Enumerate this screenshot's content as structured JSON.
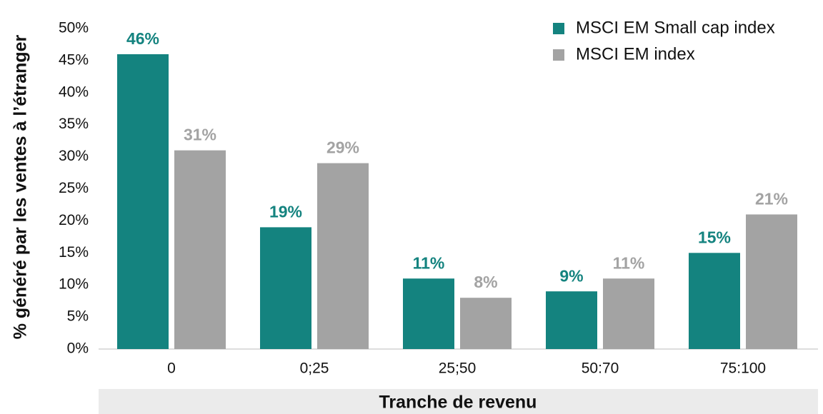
{
  "chart_data": {
    "type": "bar",
    "x_label": "Tranche de revenu",
    "y_label": "% généré par les ventes à l’étranger",
    "categories": [
      "0",
      "0;25",
      "25;50",
      "50:70",
      "75:100"
    ],
    "series": [
      {
        "name": "MSCI EM Small cap index",
        "color": "#14837f",
        "values": [
          46,
          19,
          11,
          9,
          15
        ],
        "value_labels": [
          "46%",
          "19%",
          "11%",
          "9%",
          "15%"
        ]
      },
      {
        "name": "MSCI EM index",
        "color": "#a3a3a3",
        "values": [
          31,
          29,
          8,
          11,
          21
        ],
        "value_labels": [
          "31%",
          "29%",
          "8%",
          "11%",
          "21%"
        ]
      }
    ],
    "ylim": [
      0,
      50
    ],
    "yticks": [
      {
        "value": 0,
        "label": "0%"
      },
      {
        "value": 5,
        "label": "5%"
      },
      {
        "value": 10,
        "label": "10%"
      },
      {
        "value": 15,
        "label": "15%"
      },
      {
        "value": 20,
        "label": "20%"
      },
      {
        "value": 25,
        "label": "25%"
      },
      {
        "value": 30,
        "label": "30%"
      },
      {
        "value": 35,
        "label": "35%"
      },
      {
        "value": 40,
        "label": "40%"
      },
      {
        "value": 45,
        "label": "45%"
      },
      {
        "value": 50,
        "label": "50%"
      }
    ],
    "legend": "top-right"
  }
}
